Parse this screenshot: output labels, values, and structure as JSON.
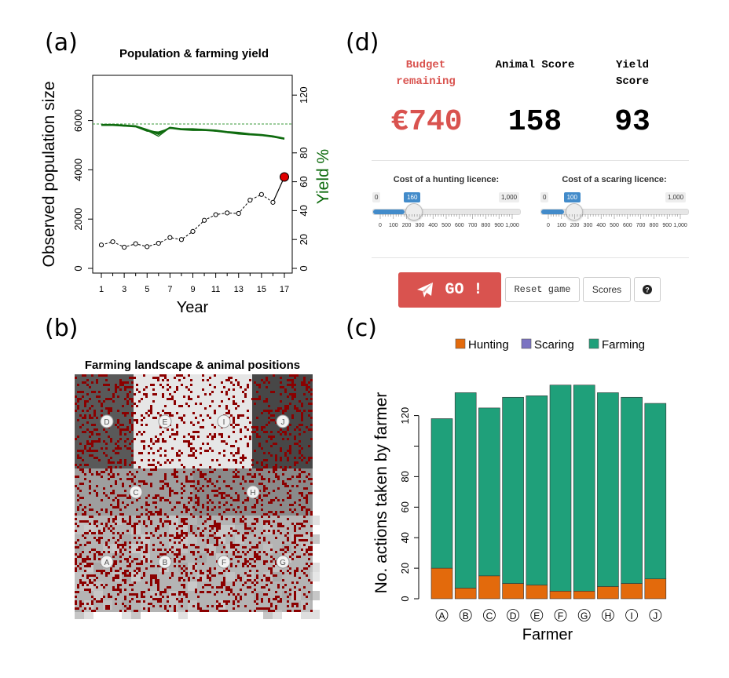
{
  "panel_labels": {
    "a": "(a)",
    "b": "(b)",
    "c": "(c)",
    "d": "(d)"
  },
  "colors": {
    "yield": "#0e6b0e",
    "population": "#000000",
    "final_point": "#e00000",
    "hunting": "#e36a0c",
    "scaring": "#7b73c2",
    "farming": "#1fa07a",
    "budget": "#d9534f",
    "slider": "#428bca",
    "go_button": "#d9534f"
  },
  "chart_population": {
    "type": "line",
    "title": "Population & farming yield",
    "xlabel": "Year",
    "ylabel_left": "Observed population size",
    "ylabel_right": "Yield %",
    "x_ticks": [
      "1",
      "3",
      "5",
      "7",
      "9",
      "11",
      "13",
      "15",
      "17"
    ],
    "y_left_ticks": [
      "0",
      "2000",
      "4000",
      "6000"
    ],
    "y_right_ticks": [
      "0",
      "20",
      "40",
      "60",
      "80",
      "120"
    ]
  },
  "chart_data": [
    {
      "type": "line",
      "title": "Population & farming yield",
      "xlabel": "Year",
      "ylabel": "Observed population size",
      "ylabel_right": "Yield %",
      "xlim": [
        1,
        17
      ],
      "ylim": [
        0,
        7000
      ],
      "ylim_right": [
        0,
        130
      ],
      "reference_line_yield": 100,
      "series": [
        {
          "axis": "left",
          "x": [
            1,
            2,
            3,
            4,
            5,
            6,
            7,
            8,
            9,
            10,
            11,
            12,
            13,
            14,
            15,
            16,
            17
          ],
          "values": [
            950,
            1080,
            860,
            1000,
            880,
            1020,
            1250,
            1170,
            1500,
            1950,
            2180,
            2250,
            2230,
            2770,
            3000,
            2680,
            3710
          ]
        },
        {
          "axis": "right",
          "x": [
            1,
            2,
            3,
            4,
            5,
            6,
            7,
            8,
            9,
            10,
            11,
            12,
            13,
            14,
            15,
            16,
            17
          ],
          "values": [
            99.5,
            99.5,
            99,
            98.5,
            96,
            93,
            97.5,
            96.5,
            96.5,
            96,
            95.5,
            94.5,
            94,
            93,
            92.5,
            91.5,
            90
          ]
        },
        {
          "axis": "right",
          "x": [
            1,
            2,
            3,
            4,
            5,
            6,
            7,
            8,
            9,
            10,
            11,
            12,
            13,
            14,
            15,
            16,
            17
          ],
          "values": [
            99,
            99,
            98.5,
            98,
            95,
            94.5,
            97,
            96,
            95.5,
            95.5,
            95,
            94,
            93,
            92.5,
            92,
            91,
            89.5
          ]
        },
        {
          "axis": "right",
          "x": [
            1,
            2,
            3,
            4,
            5,
            6,
            7,
            8,
            9,
            10,
            11,
            12,
            13,
            14,
            15,
            16,
            17
          ],
          "values": [
            99.5,
            99,
            99,
            98.5,
            95.5,
            91.5,
            97.5,
            96,
            96.5,
            95.5,
            95.5,
            94,
            93.5,
            93,
            92,
            91.5,
            89.5
          ]
        },
        {
          "axis": "right",
          "x": [
            1,
            2,
            3,
            4,
            5,
            6,
            7,
            8,
            9,
            10,
            11,
            12,
            13,
            14,
            15,
            16,
            17
          ],
          "values": [
            99,
            99.5,
            98.5,
            98.5,
            96,
            94,
            97,
            96.5,
            96,
            96,
            95,
            94.5,
            93.5,
            92.5,
            92.5,
            91,
            90
          ]
        }
      ]
    },
    {
      "type": "bar",
      "stacked": true,
      "xlabel": "Farmer",
      "ylabel": "No. actions taken by farmer",
      "ylim": [
        0,
        140
      ],
      "categories": [
        "A",
        "B",
        "C",
        "D",
        "E",
        "F",
        "G",
        "H",
        "I",
        "J"
      ],
      "legend_position": "top",
      "series": [
        {
          "name": "Hunting",
          "values": [
            20,
            7,
            15,
            10,
            9,
            5,
            5,
            8,
            10,
            13
          ]
        },
        {
          "name": "Scaring",
          "values": [
            0,
            0,
            0,
            0,
            0,
            0,
            0,
            0,
            0,
            0
          ]
        },
        {
          "name": "Farming",
          "values": [
            98,
            128,
            110,
            122,
            124,
            135,
            135,
            127,
            122,
            115
          ]
        }
      ],
      "y_ticks": [
        "0",
        "20",
        "40",
        "60",
        "80",
        "120"
      ]
    }
  ],
  "landscape": {
    "title": "Farming landscape & animal positions",
    "farmers": [
      "D",
      "E",
      "I",
      "J",
      "C",
      "H",
      "A",
      "B",
      "F",
      "G"
    ]
  },
  "game": {
    "budget_label_line1": "Budget",
    "budget_label_line2": "remaining",
    "animal_label": "Animal Score",
    "yield_label_line1": "Yield",
    "yield_label_line2": "Score",
    "budget_value": "€740",
    "animal_value": "158",
    "yield_value": "93",
    "hunting_slider": {
      "label": "Cost of a hunting licence:",
      "min": "0",
      "max": "1,000",
      "value": "160",
      "fraction": 0.16,
      "ticks": [
        "0",
        "100",
        "200",
        "300",
        "400",
        "500",
        "600",
        "700",
        "800",
        "900",
        "1,000"
      ]
    },
    "scaring_slider": {
      "label": "Cost of a scaring licence:",
      "min": "0",
      "max": "1,000",
      "value": "100",
      "fraction": 0.1,
      "ticks": [
        "0",
        "100",
        "200",
        "300",
        "400",
        "500",
        "600",
        "700",
        "800",
        "900",
        "1,000"
      ]
    },
    "go_label": "GO !",
    "reset_label": "Reset game",
    "scores_label": "Scores",
    "help_icon": "question-circle-icon"
  }
}
